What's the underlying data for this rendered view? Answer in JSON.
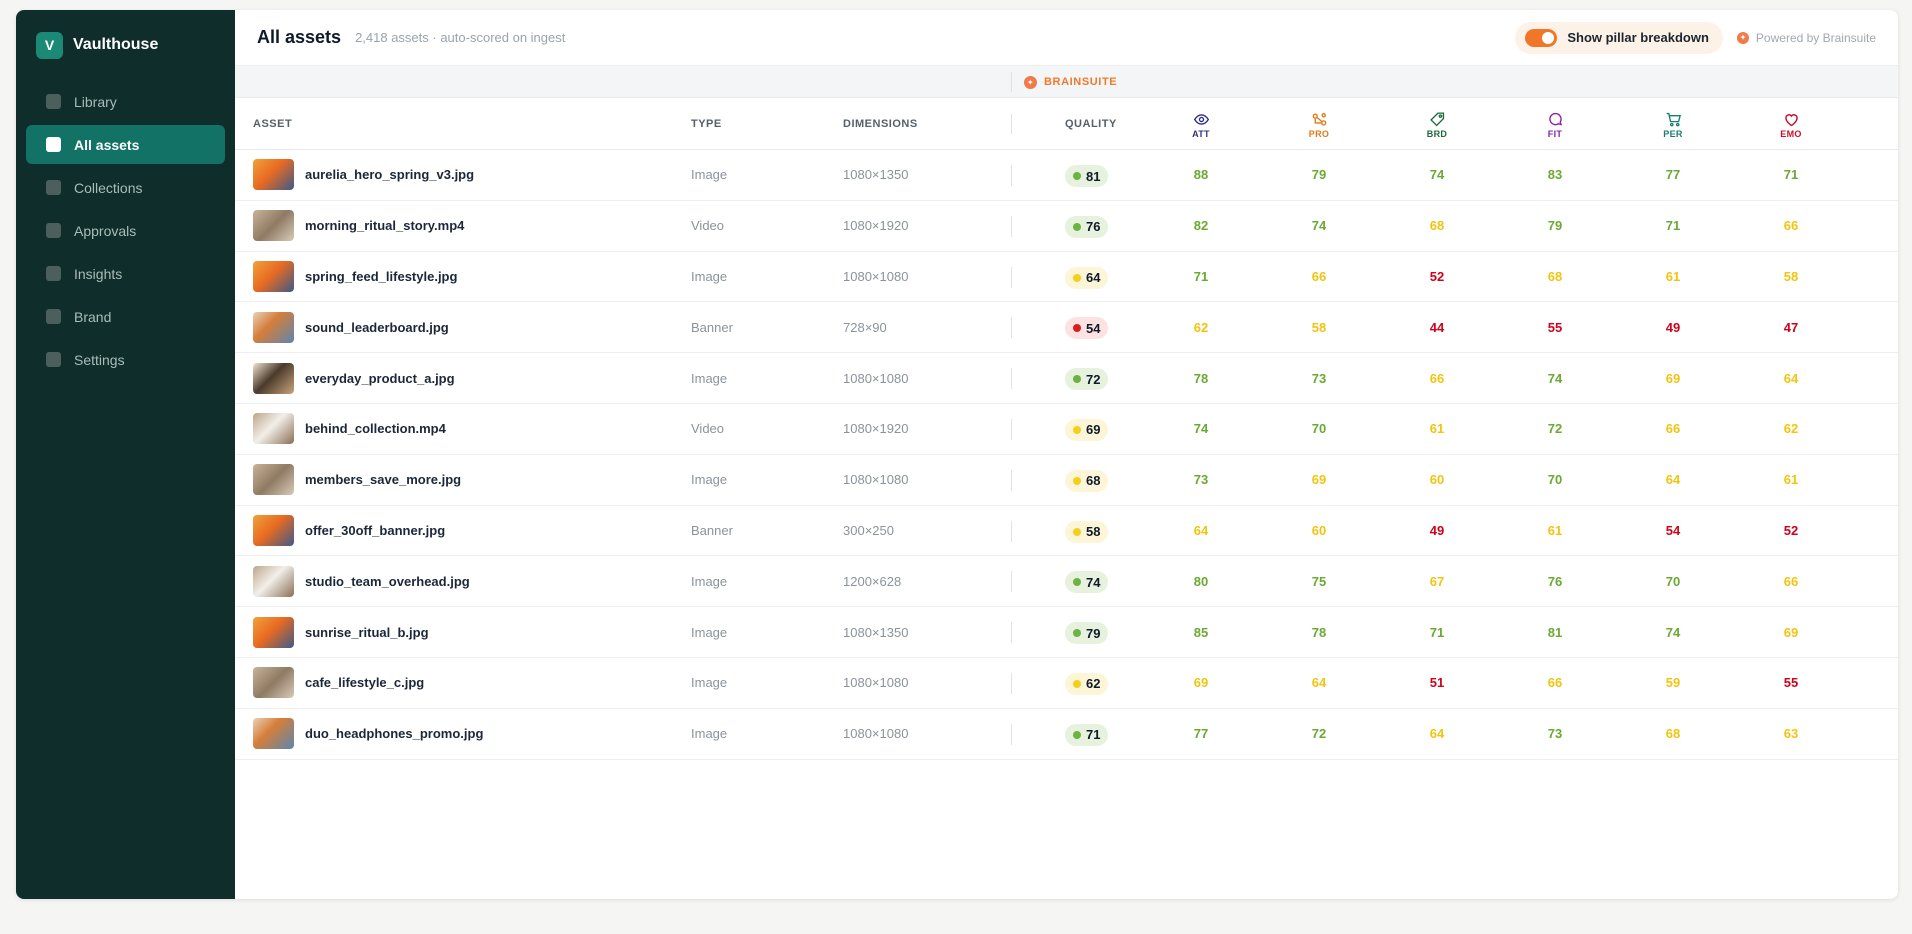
{
  "app": {
    "logo_letter": "V",
    "name": "Vaulthouse"
  },
  "sidebar": {
    "items": [
      {
        "label": "Library",
        "active": false
      },
      {
        "label": "All assets",
        "active": true
      },
      {
        "label": "Collections",
        "active": false
      },
      {
        "label": "Approvals",
        "active": false
      },
      {
        "label": "Insights",
        "active": false
      },
      {
        "label": "Brand",
        "active": false
      },
      {
        "label": "Settings",
        "active": false
      }
    ]
  },
  "header": {
    "title": "All assets",
    "subtitle": "2,418 assets · auto-scored on ingest",
    "toggle_label": "Show pillar breakdown",
    "toggle_on": true,
    "powered_by": "Powered by Brainsuite"
  },
  "band": {
    "label": "BRAINSUITE"
  },
  "columns": {
    "asset": "ASSET",
    "type": "TYPE",
    "dimensions": "DIMENSIONS",
    "quality": "QUALITY",
    "pillars": [
      {
        "abbr": "ATT",
        "icon": "eye-icon",
        "color": "#2e2f8c"
      },
      {
        "abbr": "PRO",
        "icon": "pro-icon",
        "color": "#e07b19"
      },
      {
        "abbr": "BRD",
        "icon": "tag-icon",
        "color": "#1b6b3b"
      },
      {
        "abbr": "FIT",
        "icon": "chat-bubble-icon",
        "color": "#8a1fa8"
      },
      {
        "abbr": "PER",
        "icon": "cart-icon",
        "color": "#14806f"
      },
      {
        "abbr": "EMO",
        "icon": "heart-icon",
        "color": "#c8102e"
      }
    ]
  },
  "score_colors": {
    "green": "#6aa932",
    "yellow": "#f1c40f",
    "red": "#d0021b"
  },
  "rows": [
    {
      "name": "aurelia_hero_spring_v3.jpg",
      "type": "Image",
      "dimensions": "1080×1350",
      "thumb": "warm",
      "quality": 81,
      "quality_band": "green",
      "scores": [
        88,
        79,
        74,
        83,
        77,
        71
      ],
      "score_bands": [
        "green",
        "green",
        "green",
        "green",
        "green",
        "green"
      ]
    },
    {
      "name": "morning_ritual_story.mp4",
      "type": "Video",
      "dimensions": "1080×1920",
      "thumb": "neutral",
      "quality": 76,
      "quality_band": "green",
      "scores": [
        82,
        74,
        68,
        79,
        71,
        66
      ],
      "score_bands": [
        "green",
        "green",
        "yellow",
        "green",
        "green",
        "yellow"
      ]
    },
    {
      "name": "spring_feed_lifestyle.jpg",
      "type": "Image",
      "dimensions": "1080×1080",
      "thumb": "warm",
      "quality": 64,
      "quality_band": "yellow",
      "scores": [
        71,
        66,
        52,
        68,
        61,
        58
      ],
      "score_bands": [
        "green",
        "yellow",
        "red",
        "yellow",
        "yellow",
        "yellow"
      ]
    },
    {
      "name": "sound_leaderboard.jpg",
      "type": "Banner",
      "dimensions": "728×90",
      "thumb": "people",
      "quality": 54,
      "quality_band": "red",
      "scores": [
        62,
        58,
        44,
        55,
        49,
        47
      ],
      "score_bands": [
        "yellow",
        "yellow",
        "red",
        "red",
        "red",
        "red"
      ]
    },
    {
      "name": "everyday_product_a.jpg",
      "type": "Image",
      "dimensions": "1080×1080",
      "thumb": "dark",
      "quality": 72,
      "quality_band": "green",
      "scores": [
        78,
        73,
        66,
        74,
        69,
        64
      ],
      "score_bands": [
        "green",
        "green",
        "yellow",
        "green",
        "yellow",
        "yellow"
      ]
    },
    {
      "name": "behind_collection.mp4",
      "type": "Video",
      "dimensions": "1080×1920",
      "thumb": "studio",
      "quality": 69,
      "quality_band": "yellow",
      "scores": [
        74,
        70,
        61,
        72,
        66,
        62
      ],
      "score_bands": [
        "green",
        "green",
        "yellow",
        "green",
        "yellow",
        "yellow"
      ]
    },
    {
      "name": "members_save_more.jpg",
      "type": "Image",
      "dimensions": "1080×1080",
      "thumb": "neutral",
      "quality": 68,
      "quality_band": "yellow",
      "scores": [
        73,
        69,
        60,
        70,
        64,
        61
      ],
      "score_bands": [
        "green",
        "yellow",
        "yellow",
        "green",
        "yellow",
        "yellow"
      ]
    },
    {
      "name": "offer_30off_banner.jpg",
      "type": "Banner",
      "dimensions": "300×250",
      "thumb": "warm",
      "quality": 58,
      "quality_band": "yellow",
      "scores": [
        64,
        60,
        49,
        61,
        54,
        52
      ],
      "score_bands": [
        "yellow",
        "yellow",
        "red",
        "yellow",
        "red",
        "red"
      ]
    },
    {
      "name": "studio_team_overhead.jpg",
      "type": "Image",
      "dimensions": "1200×628",
      "thumb": "studio",
      "quality": 74,
      "quality_band": "green",
      "scores": [
        80,
        75,
        67,
        76,
        70,
        66
      ],
      "score_bands": [
        "green",
        "green",
        "yellow",
        "green",
        "green",
        "yellow"
      ]
    },
    {
      "name": "sunrise_ritual_b.jpg",
      "type": "Image",
      "dimensions": "1080×1350",
      "thumb": "warm",
      "quality": 79,
      "quality_band": "green",
      "scores": [
        85,
        78,
        71,
        81,
        74,
        69
      ],
      "score_bands": [
        "green",
        "green",
        "green",
        "green",
        "green",
        "yellow"
      ]
    },
    {
      "name": "cafe_lifestyle_c.jpg",
      "type": "Image",
      "dimensions": "1080×1080",
      "thumb": "neutral",
      "quality": 62,
      "quality_band": "yellow",
      "scores": [
        69,
        64,
        51,
        66,
        59,
        55
      ],
      "score_bands": [
        "yellow",
        "yellow",
        "red",
        "yellow",
        "yellow",
        "red"
      ]
    },
    {
      "name": "duo_headphones_promo.jpg",
      "type": "Image",
      "dimensions": "1080×1080",
      "thumb": "people",
      "quality": 71,
      "quality_band": "green",
      "scores": [
        77,
        72,
        64,
        73,
        68,
        63
      ],
      "score_bands": [
        "green",
        "green",
        "yellow",
        "green",
        "yellow",
        "yellow"
      ]
    }
  ]
}
